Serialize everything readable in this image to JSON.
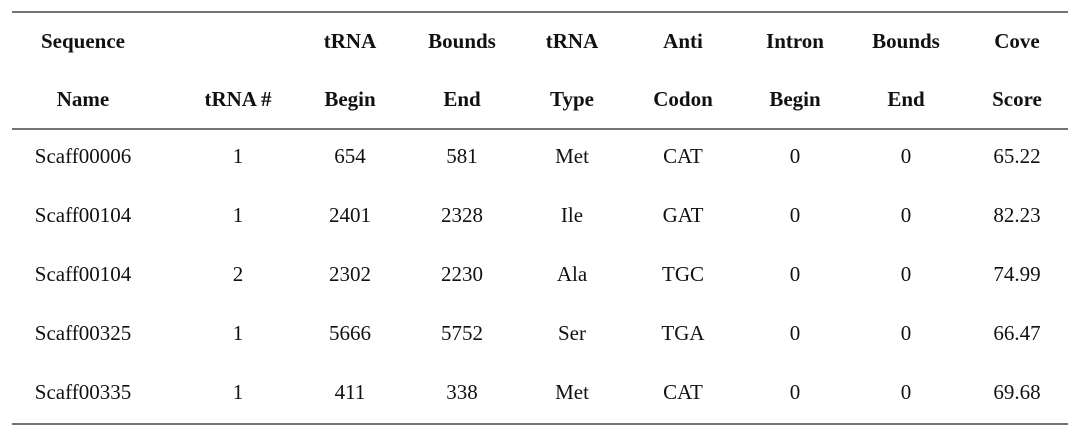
{
  "table": {
    "columns": [
      {
        "top": "Sequence",
        "bottom": "Name"
      },
      {
        "bottom": "tRNA #"
      },
      {
        "top": "tRNA",
        "bottom": "Begin"
      },
      {
        "top": "Bounds",
        "bottom": "End"
      },
      {
        "top": "tRNA",
        "bottom": "Type"
      },
      {
        "top": "Anti",
        "bottom": "Codon"
      },
      {
        "top": "Intron",
        "bottom": "Begin"
      },
      {
        "top": "Bounds",
        "bottom": "End"
      },
      {
        "top": "Cove",
        "bottom": "Score"
      }
    ],
    "rows": [
      [
        "Scaff00006",
        1,
        654,
        581,
        "Met",
        "CAT",
        0,
        0,
        65.22
      ],
      [
        "Scaff00104",
        1,
        2401,
        2328,
        "Ile",
        "GAT",
        0,
        0,
        82.23
      ],
      [
        "Scaff00104",
        2,
        2302,
        2230,
        "Ala",
        "TGC",
        0,
        0,
        74.99
      ],
      [
        "Scaff00325",
        1,
        5666,
        5752,
        "Ser",
        "TGA",
        0,
        0,
        66.47
      ],
      [
        "Scaff00335",
        1,
        411,
        338,
        "Met",
        "CAT",
        0,
        0,
        69.68
      ]
    ]
  }
}
